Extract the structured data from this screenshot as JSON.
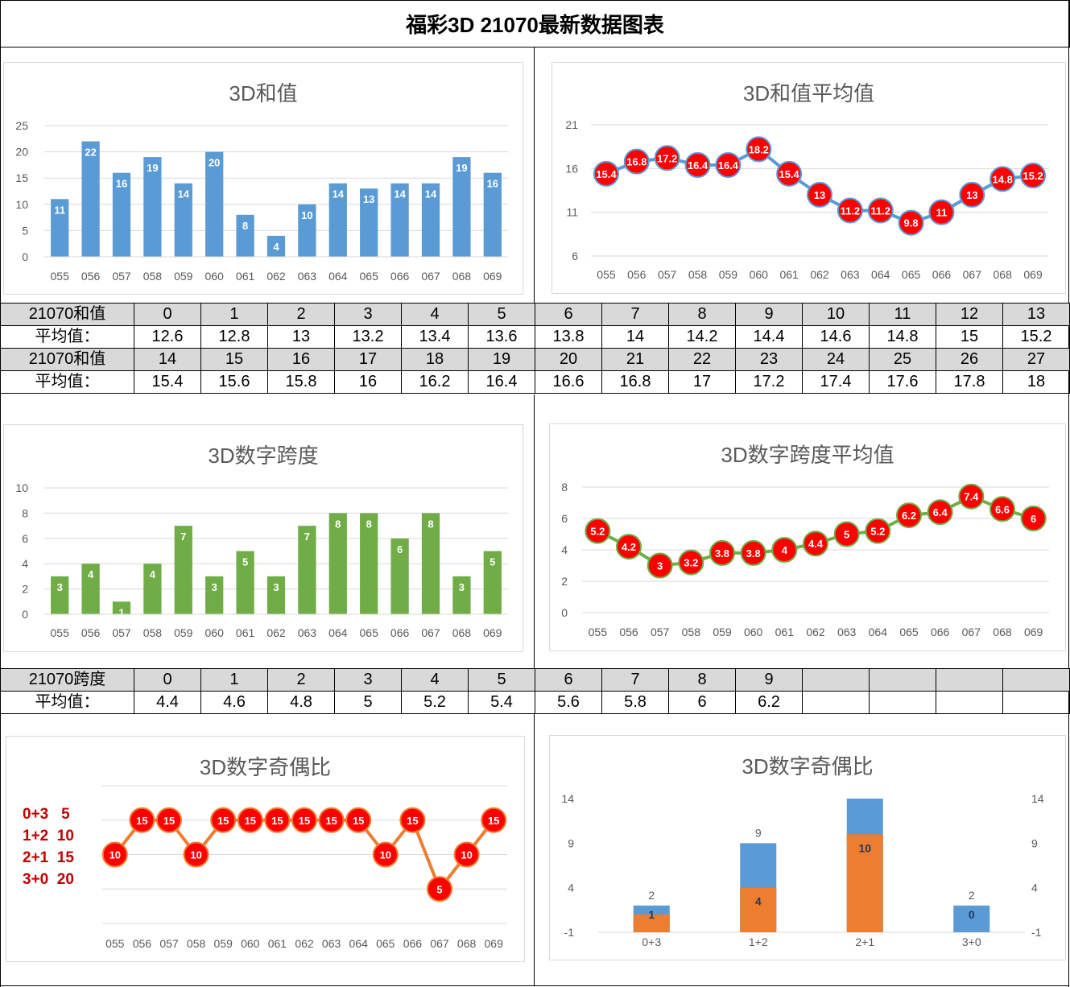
{
  "header": {
    "title": "福彩3D 21070最新数据图表"
  },
  "sum_table": {
    "rows": [
      {
        "label": "21070和值",
        "cells": [
          "0",
          "1",
          "2",
          "3",
          "4",
          "5",
          "6",
          "7",
          "8",
          "9",
          "10",
          "11",
          "12",
          "13"
        ]
      },
      {
        "label": "平均值：",
        "cells": [
          "12.6",
          "12.8",
          "13",
          "13.2",
          "13.4",
          "13.6",
          "13.8",
          "14",
          "14.2",
          "14.4",
          "14.6",
          "14.8",
          "15",
          "15.2"
        ]
      },
      {
        "label": "21070和值",
        "cells": [
          "14",
          "15",
          "16",
          "17",
          "18",
          "19",
          "20",
          "21",
          "22",
          "23",
          "24",
          "25",
          "26",
          "27"
        ]
      },
      {
        "label": "平均值：",
        "cells": [
          "15.4",
          "15.6",
          "15.8",
          "16",
          "16.2",
          "16.4",
          "16.6",
          "16.8",
          "17",
          "17.2",
          "17.4",
          "17.6",
          "17.8",
          "18"
        ]
      }
    ]
  },
  "span_table": {
    "rows": [
      {
        "label": "21070跨度",
        "cells": [
          "0",
          "1",
          "2",
          "3",
          "4",
          "5",
          "6",
          "7",
          "8",
          "9",
          "",
          "",
          "",
          ""
        ]
      },
      {
        "label": "平均值：",
        "cells": [
          "4.4",
          "4.6",
          "4.8",
          "5",
          "5.2",
          "5.4",
          "5.6",
          "5.8",
          "6",
          "6.2",
          "",
          "",
          "",
          ""
        ]
      }
    ]
  },
  "parity_legend": {
    "lines": [
      "0+3   5",
      "1+2  10",
      "2+1  15",
      "3+0  20"
    ]
  },
  "chart_data": [
    {
      "id": "sum",
      "type": "bar",
      "title": "3D和值",
      "color": "#5b9bd5",
      "categories": [
        "055",
        "056",
        "057",
        "058",
        "059",
        "060",
        "061",
        "062",
        "063",
        "064",
        "065",
        "066",
        "067",
        "068",
        "069"
      ],
      "values": [
        11,
        22,
        16,
        19,
        14,
        20,
        8,
        4,
        10,
        14,
        13,
        14,
        14,
        19,
        16
      ],
      "yticks": [
        0,
        5,
        10,
        15,
        20,
        25
      ],
      "ylim": [
        0,
        25
      ],
      "grid": true
    },
    {
      "id": "sum-avg",
      "type": "line",
      "title": "3D和值平均值",
      "color": "#5b9bd5",
      "marker_color": "#ff0000",
      "categories": [
        "055",
        "056",
        "057",
        "058",
        "059",
        "060",
        "061",
        "062",
        "063",
        "064",
        "065",
        "066",
        "067",
        "068",
        "069"
      ],
      "values": [
        15.4,
        16.8,
        17.2,
        16.4,
        16.4,
        18.2,
        15.4,
        13,
        11.2,
        11.2,
        9.8,
        11,
        13,
        14.8,
        15.2
      ],
      "yticks": [
        6,
        11,
        16,
        21
      ],
      "ylim": [
        6,
        21
      ],
      "grid": true
    },
    {
      "id": "span",
      "type": "bar",
      "title": "3D数字跨度",
      "color": "#70ad47",
      "categories": [
        "055",
        "056",
        "057",
        "058",
        "059",
        "060",
        "061",
        "062",
        "063",
        "064",
        "065",
        "066",
        "067",
        "068",
        "069"
      ],
      "values": [
        3,
        4,
        1,
        4,
        7,
        3,
        5,
        3,
        7,
        8,
        8,
        6,
        8,
        3,
        5
      ],
      "yticks": [
        0,
        2,
        4,
        6,
        8,
        10
      ],
      "ylim": [
        0,
        10
      ],
      "grid": true
    },
    {
      "id": "span-avg",
      "type": "line",
      "title": "3D数字跨度平均值",
      "color": "#70ad47",
      "marker_color": "#ff0000",
      "categories": [
        "055",
        "056",
        "057",
        "058",
        "059",
        "060",
        "061",
        "062",
        "063",
        "064",
        "065",
        "066",
        "067",
        "068",
        "069"
      ],
      "values": [
        5.2,
        4.2,
        3,
        3.2,
        3.8,
        3.8,
        4,
        4.4,
        5,
        5.2,
        6.2,
        6.4,
        7.4,
        6.6,
        6
      ],
      "yticks": [
        0,
        2,
        4,
        6,
        8
      ],
      "ylim": [
        0,
        8
      ],
      "grid": true
    },
    {
      "id": "parity-line",
      "type": "line",
      "title": "3D数字奇偶比",
      "color": "#ed7d31",
      "marker_color": "#ff0000",
      "categories": [
        "055",
        "056",
        "057",
        "058",
        "059",
        "060",
        "061",
        "062",
        "063",
        "064",
        "065",
        "066",
        "067",
        "068",
        "069"
      ],
      "values": [
        10,
        15,
        15,
        10,
        15,
        15,
        15,
        15,
        15,
        15,
        10,
        15,
        5,
        10,
        15
      ],
      "ylim": [
        0,
        20
      ],
      "grid": true
    },
    {
      "id": "parity-bar",
      "type": "bar",
      "title": "3D数字奇偶比",
      "categories": [
        "0+3",
        "1+2",
        "2+1",
        "3+0"
      ],
      "series": [
        {
          "values": [
            2,
            9,
            14,
            2
          ],
          "labels": [
            "2",
            "9",
            "",
            ""
          ],
          "color": "#5b9bd5"
        },
        {
          "values": [
            1,
            4,
            10,
            0
          ],
          "labels": [
            "1",
            "4",
            "10",
            "0"
          ],
          "color": "#ed7d31",
          "label_color": "#1f3864"
        }
      ],
      "label_above": [
        "2",
        "9",
        "",
        "2"
      ],
      "yticks": [
        -1,
        4,
        9,
        14
      ],
      "ylim": [
        -1,
        14
      ],
      "grid": false
    }
  ]
}
